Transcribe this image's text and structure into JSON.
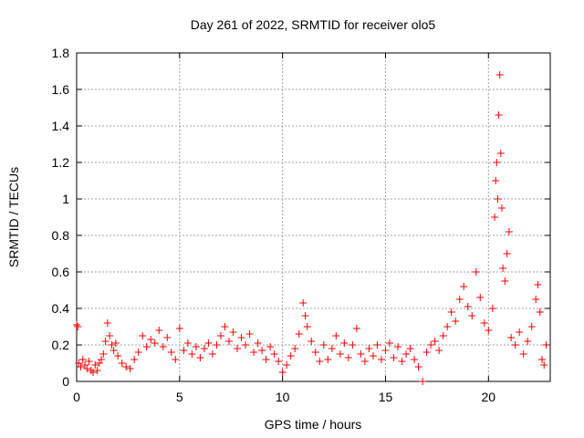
{
  "chart_data": {
    "type": "scatter",
    "title": "Day 261 of 2022, SRMTID for receiver olo5",
    "xlabel": "GPS time / hours",
    "ylabel": "SRMTID / TECUs",
    "xlim": [
      0,
      23
    ],
    "ylim": [
      0,
      1.8
    ],
    "x_ticks": [
      0,
      5,
      10,
      15,
      20
    ],
    "y_ticks": [
      0,
      0.2,
      0.4,
      0.6,
      0.8,
      1,
      1.2,
      1.4,
      1.6,
      1.8
    ],
    "x_tick_labels": [
      "0",
      "5",
      "10",
      "15",
      "20"
    ],
    "y_tick_labels": [
      "0",
      "0.2",
      "0.4",
      "0.6",
      "0.8",
      "1",
      "1.2",
      "1.4",
      "1.6",
      "1.8"
    ],
    "grid": true,
    "marker": "+",
    "color": "#ff0000",
    "series": [
      {
        "name": "SRMTID",
        "points": [
          [
            0.0,
            0.31
          ],
          [
            0.05,
            0.3
          ],
          [
            0.1,
            0.1
          ],
          [
            0.2,
            0.08
          ],
          [
            0.3,
            0.12
          ],
          [
            0.4,
            0.09
          ],
          [
            0.5,
            0.07
          ],
          [
            0.6,
            0.11
          ],
          [
            0.7,
            0.06
          ],
          [
            0.8,
            0.05
          ],
          [
            0.9,
            0.09
          ],
          [
            1.0,
            0.06
          ],
          [
            1.1,
            0.1
          ],
          [
            1.2,
            0.12
          ],
          [
            1.3,
            0.15
          ],
          [
            1.4,
            0.22
          ],
          [
            1.5,
            0.32
          ],
          [
            1.6,
            0.25
          ],
          [
            1.7,
            0.2
          ],
          [
            1.8,
            0.17
          ],
          [
            1.9,
            0.21
          ],
          [
            2.0,
            0.14
          ],
          [
            2.2,
            0.1
          ],
          [
            2.4,
            0.08
          ],
          [
            2.6,
            0.07
          ],
          [
            2.8,
            0.12
          ],
          [
            3.0,
            0.16
          ],
          [
            3.2,
            0.25
          ],
          [
            3.4,
            0.19
          ],
          [
            3.6,
            0.23
          ],
          [
            3.8,
            0.21
          ],
          [
            4.0,
            0.28
          ],
          [
            4.2,
            0.19
          ],
          [
            4.4,
            0.24
          ],
          [
            4.6,
            0.16
          ],
          [
            4.8,
            0.12
          ],
          [
            5.0,
            0.29
          ],
          [
            5.2,
            0.17
          ],
          [
            5.4,
            0.21
          ],
          [
            5.6,
            0.15
          ],
          [
            5.8,
            0.19
          ],
          [
            6.0,
            0.13
          ],
          [
            6.2,
            0.18
          ],
          [
            6.4,
            0.21
          ],
          [
            6.6,
            0.15
          ],
          [
            6.8,
            0.2
          ],
          [
            7.0,
            0.25
          ],
          [
            7.2,
            0.3
          ],
          [
            7.4,
            0.22
          ],
          [
            7.6,
            0.27
          ],
          [
            7.8,
            0.18
          ],
          [
            8.0,
            0.24
          ],
          [
            8.2,
            0.2
          ],
          [
            8.4,
            0.26
          ],
          [
            8.6,
            0.16
          ],
          [
            8.8,
            0.21
          ],
          [
            9.0,
            0.17
          ],
          [
            9.2,
            0.12
          ],
          [
            9.4,
            0.19
          ],
          [
            9.6,
            0.15
          ],
          [
            9.8,
            0.11
          ],
          [
            10.0,
            0.05
          ],
          [
            10.2,
            0.09
          ],
          [
            10.4,
            0.14
          ],
          [
            10.6,
            0.18
          ],
          [
            10.8,
            0.26
          ],
          [
            11.0,
            0.43
          ],
          [
            11.1,
            0.36
          ],
          [
            11.2,
            0.3
          ],
          [
            11.4,
            0.22
          ],
          [
            11.6,
            0.16
          ],
          [
            11.8,
            0.11
          ],
          [
            12.0,
            0.2
          ],
          [
            12.2,
            0.12
          ],
          [
            12.4,
            0.18
          ],
          [
            12.6,
            0.25
          ],
          [
            12.8,
            0.15
          ],
          [
            13.0,
            0.21
          ],
          [
            13.2,
            0.13
          ],
          [
            13.4,
            0.2
          ],
          [
            13.6,
            0.29
          ],
          [
            13.8,
            0.15
          ],
          [
            14.0,
            0.11
          ],
          [
            14.2,
            0.18
          ],
          [
            14.4,
            0.14
          ],
          [
            14.6,
            0.2
          ],
          [
            14.8,
            0.12
          ],
          [
            15.0,
            0.17
          ],
          [
            15.2,
            0.21
          ],
          [
            15.4,
            0.13
          ],
          [
            15.6,
            0.19
          ],
          [
            15.8,
            0.11
          ],
          [
            16.0,
            0.15
          ],
          [
            16.2,
            0.18
          ],
          [
            16.4,
            0.12
          ],
          [
            16.6,
            0.08
          ],
          [
            16.8,
            0.0
          ],
          [
            17.0,
            0.16
          ],
          [
            17.2,
            0.2
          ],
          [
            17.4,
            0.22
          ],
          [
            17.6,
            0.17
          ],
          [
            17.8,
            0.25
          ],
          [
            18.0,
            0.3
          ],
          [
            18.2,
            0.38
          ],
          [
            18.4,
            0.33
          ],
          [
            18.6,
            0.45
          ],
          [
            18.8,
            0.52
          ],
          [
            19.0,
            0.41
          ],
          [
            19.2,
            0.36
          ],
          [
            19.4,
            0.6
          ],
          [
            19.6,
            0.46
          ],
          [
            19.8,
            0.32
          ],
          [
            20.0,
            0.28
          ],
          [
            20.2,
            0.4
          ],
          [
            20.3,
            0.9
          ],
          [
            20.35,
            1.1
          ],
          [
            20.4,
            1.2
          ],
          [
            20.45,
            1.0
          ],
          [
            20.5,
            1.46
          ],
          [
            20.55,
            1.68
          ],
          [
            20.6,
            1.25
          ],
          [
            20.65,
            0.95
          ],
          [
            20.7,
            0.62
          ],
          [
            20.8,
            0.55
          ],
          [
            20.9,
            0.7
          ],
          [
            21.0,
            0.82
          ],
          [
            21.1,
            0.24
          ],
          [
            21.3,
            0.2
          ],
          [
            21.5,
            0.27
          ],
          [
            21.7,
            0.15
          ],
          [
            21.9,
            0.22
          ],
          [
            22.1,
            0.3
          ],
          [
            22.3,
            0.45
          ],
          [
            22.4,
            0.53
          ],
          [
            22.5,
            0.38
          ],
          [
            22.6,
            0.12
          ],
          [
            22.7,
            0.09
          ],
          [
            22.8,
            0.2
          ]
        ]
      }
    ]
  }
}
